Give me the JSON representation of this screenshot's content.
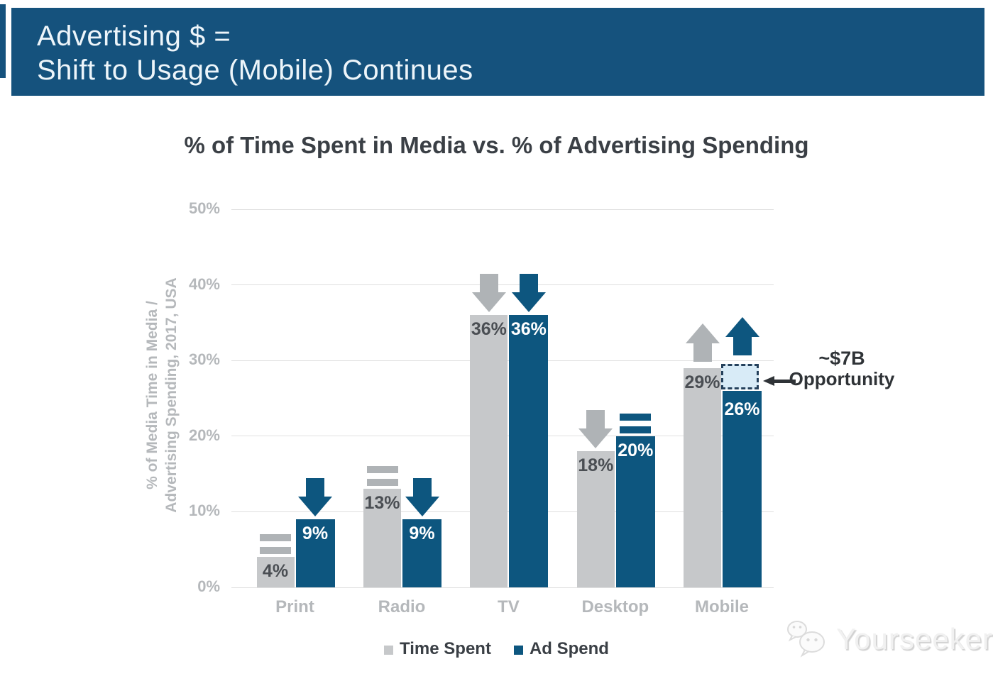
{
  "banner": {
    "line1": "Advertising $ =",
    "line2": "Shift to Usage (Mobile) Continues",
    "bg_color": "#15527D"
  },
  "chart_data": {
    "type": "bar",
    "title": "% of Time Spent in Media vs. % of Advertising Spending",
    "categories": [
      "Print",
      "Radio",
      "TV",
      "Desktop",
      "Mobile"
    ],
    "series": [
      {
        "name": "Time Spent",
        "color": "#C6C8CA",
        "indicator_color": "#AFB3B6",
        "label_color": "#4A4E53",
        "values": [
          4,
          13,
          36,
          18,
          29
        ],
        "labels": [
          "4%",
          "13%",
          "36%",
          "18%",
          "29%"
        ],
        "indicators": [
          "equal",
          "equal",
          "down",
          "down",
          "up"
        ]
      },
      {
        "name": "Ad Spend",
        "color": "#0D567F",
        "indicator_color": "#0D567F",
        "label_color": "#FFFFFF",
        "values": [
          9,
          9,
          36,
          20,
          26
        ],
        "labels": [
          "9%",
          "9%",
          "36%",
          "20%",
          "26%"
        ],
        "indicators": [
          "down",
          "down",
          "down",
          "equal",
          "up"
        ]
      }
    ],
    "ylabel_line1": "% of Media Time in Media /",
    "ylabel_line2": "Advertising Spending, 2017, USA",
    "yticks": [
      "0%",
      "10%",
      "20%",
      "30%",
      "40%",
      "50%"
    ],
    "ylim": [
      0,
      50
    ],
    "grid": true,
    "legend_position": "bottom",
    "annotation": {
      "line1": "~$7B",
      "line2": "Opportunity",
      "attached_to": "Mobile Ad Spend gap vs Time Spent",
      "box_fill": "#D8EBF7",
      "box_border": "#24405B"
    }
  },
  "watermark": {
    "text": "Yourseeker",
    "icon": "wechat-logo-icon"
  }
}
